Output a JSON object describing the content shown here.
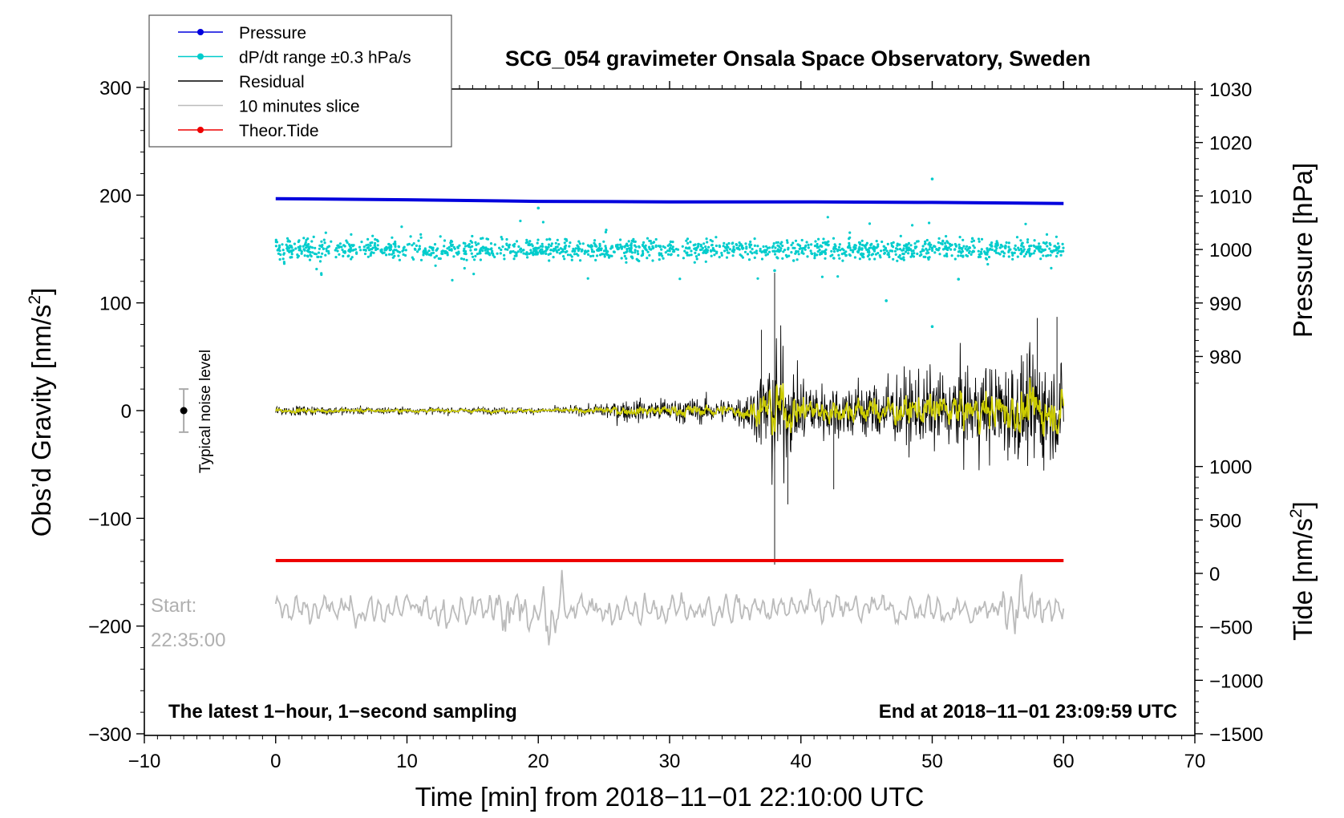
{
  "chart_data": {
    "type": "line",
    "title": "SCG_054 gravimeter Onsala Space Observatory, Sweden",
    "xlabel": "Time [min] from 2018−11−01 22:10:00 UTC",
    "ylabel_left": "Obs’d Gravity [nm/s²]",
    "ylabel_left_main": "Obs’d Gravity [nm/s",
    "ylabel_left_sup": "2",
    "ylabel_left_close": "]",
    "ylabel_right_pressure": "Pressure [hPa]",
    "ylabel_right_tide": "Tide [nm/s²]",
    "ylabel_right_tide_main": "Tide [nm/s",
    "ylabel_right_tide_sup": "2",
    "ylabel_right_tide_close": "]",
    "xlim": [
      -10,
      70
    ],
    "ylim_left": [
      -300,
      300
    ],
    "x_ticks": [
      "−10",
      "0",
      "10",
      "20",
      "30",
      "40",
      "50",
      "60",
      "70"
    ],
    "x_tick_values": [
      -10,
      0,
      10,
      20,
      30,
      40,
      50,
      60,
      70
    ],
    "y_left_ticks": [
      "300",
      "200",
      "100",
      "0",
      "−100",
      "−200",
      "−300"
    ],
    "y_left_tick_values": [
      300,
      200,
      100,
      0,
      -100,
      -200,
      -300
    ],
    "pressure_ticks": [
      "1030",
      "1020",
      "1010",
      "1000",
      "990",
      "980"
    ],
    "pressure_tick_values": [
      1030,
      1020,
      1010,
      1000,
      990,
      980
    ],
    "tide_ticks": [
      "1000",
      "500",
      "0",
      "−500",
      "−1000",
      "−1500"
    ],
    "tide_tick_values": [
      1000,
      500,
      0,
      -500,
      -1000,
      -1500
    ],
    "legend": [
      {
        "label": "Pressure",
        "color": "#0000dd",
        "marker": true
      },
      {
        "label": "dP/dt range ±0.3 hPa/s",
        "color": "#00cccc",
        "marker": true
      },
      {
        "label": "Residual",
        "color": "#000000",
        "marker": false
      },
      {
        "label": "10 minutes slice",
        "color": "#bbbbbb",
        "marker": false
      },
      {
        "label": "Theor.Tide",
        "color": "#ee0000",
        "marker": true
      }
    ],
    "series": [
      {
        "name": "Pressure",
        "axis": "pressure_hPa",
        "color": "#0000dd",
        "x": [
          0,
          10,
          20,
          30,
          40,
          50,
          60
        ],
        "values": [
          1009.5,
          1009.3,
          1009.0,
          1008.9,
          1008.9,
          1008.8,
          1008.6
        ]
      },
      {
        "name": "dP/dt range ±0.3 hPa/s",
        "axis": "gravity_nm_s2",
        "color": "#00cccc",
        "center": 150,
        "spread": 12,
        "outliers": [
          [
            20,
            188
          ],
          [
            38,
            130
          ],
          [
            46.5,
            102
          ],
          [
            50,
            215
          ],
          [
            50,
            78
          ],
          [
            52,
            122
          ]
        ]
      },
      {
        "name": "Residual",
        "axis": "gravity_nm_s2",
        "color": "#000000",
        "envelope_x": [
          0,
          10,
          20,
          24,
          25,
          30,
          35,
          36.5,
          37.5,
          38,
          39,
          42,
          45,
          50,
          55,
          58,
          60
        ],
        "envelope_amp": [
          7,
          5,
          5,
          7,
          14,
          18,
          18,
          40,
          75,
          130,
          60,
          40,
          45,
          55,
          70,
          80,
          60
        ],
        "spikes": [
          [
            38,
            128
          ],
          [
            38,
            -143
          ],
          [
            37,
            75
          ],
          [
            39,
            -87
          ],
          [
            42.5,
            -73
          ],
          [
            59.5,
            87
          ],
          [
            58,
            86
          ]
        ]
      },
      {
        "name": "Residual (smoothed)",
        "axis": "gravity_nm_s2",
        "color": "#cccc00"
      },
      {
        "name": "10 minutes slice",
        "axis": "gravity_nm_s2",
        "color": "#bbbbbb",
        "center": -185,
        "x_range": [
          0,
          60
        ],
        "min": -222,
        "max": -148
      },
      {
        "name": "Theor.Tide",
        "axis": "tide_nm_s2",
        "color": "#ee0000",
        "x": [
          0,
          60
        ],
        "values": [
          120,
          120
        ]
      }
    ],
    "noise_bar": {
      "x": -7,
      "y": 0,
      "half_range": 20,
      "label": "Typical noise level"
    },
    "annotations": {
      "start_label": "Start:",
      "start_time": "22:35:00",
      "bottom_left": "The latest 1−hour, 1−second sampling",
      "bottom_right": "End at 2018−11−01 23:09:59 UTC"
    }
  }
}
